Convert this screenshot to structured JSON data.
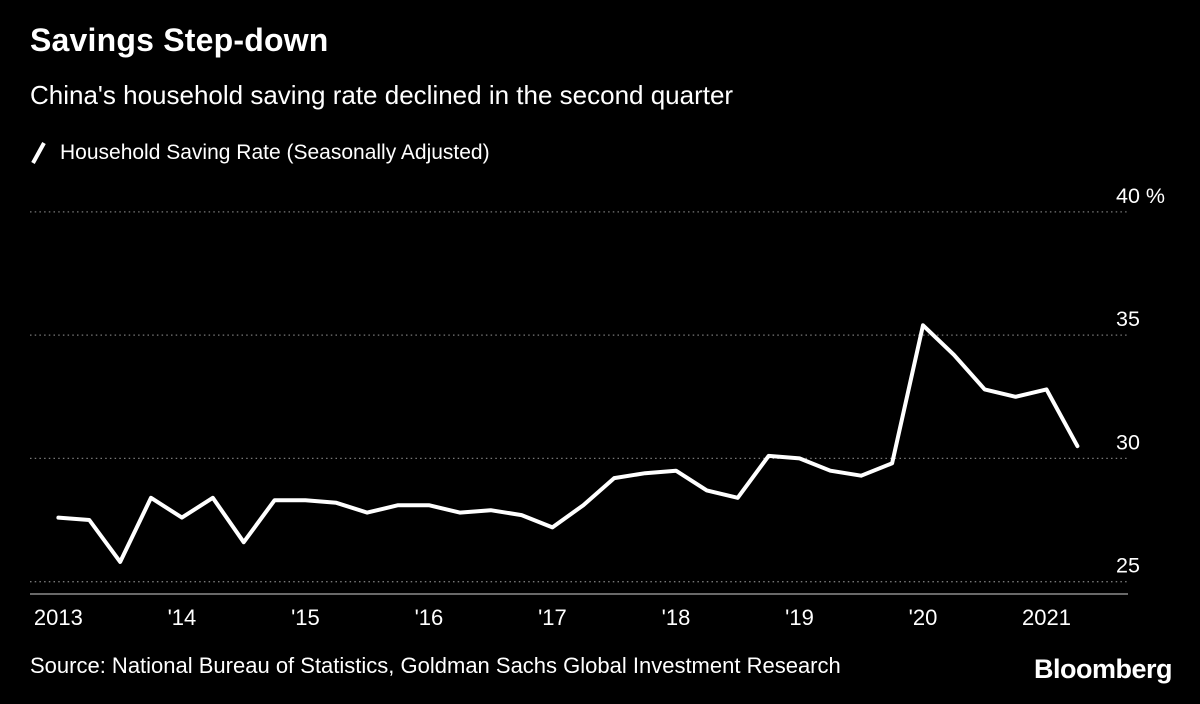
{
  "colors": {
    "background": "#000000",
    "text": "#ffffff",
    "line": "#ffffff",
    "grid": "#787878",
    "axis": "#a8a8a8"
  },
  "header": {
    "title": "Savings Step-down",
    "subtitle": "China's household saving rate declined in the second quarter"
  },
  "legend": {
    "marker": "white-slash-line",
    "label": "Household Saving Rate (Seasonally Adjusted)"
  },
  "footer": {
    "source": "Source: National Bureau of Statistics, Goldman Sachs Global Investment Research",
    "brand": "Bloomberg"
  },
  "chart_data": {
    "type": "line",
    "title": "Savings Step-down",
    "subtitle": "China's household saving rate declined in the second quarter",
    "grid": "horizontal-dotted",
    "legend_position": "top-left",
    "y_axis_side": "right",
    "y_unit": "%",
    "y_ticks": [
      25,
      30,
      35,
      40
    ],
    "ylim": [
      24.5,
      41.9
    ],
    "xlim": [
      2012.77,
      2021.66
    ],
    "x_ticks": [
      {
        "v": 2013,
        "label": "2013"
      },
      {
        "v": 2014,
        "label": "'14"
      },
      {
        "v": 2015,
        "label": "'15"
      },
      {
        "v": 2016,
        "label": "'16"
      },
      {
        "v": 2017,
        "label": "'17"
      },
      {
        "v": 2018,
        "label": "'18"
      },
      {
        "v": 2019,
        "label": "'19"
      },
      {
        "v": 2020,
        "label": "'20"
      },
      {
        "v": 2021,
        "label": "2021"
      }
    ],
    "series": [
      {
        "name": "Household Saving Rate (Seasonally Adjusted)",
        "x": [
          2013.0,
          2013.25,
          2013.5,
          2013.75,
          2014.0,
          2014.25,
          2014.5,
          2014.75,
          2015.0,
          2015.25,
          2015.5,
          2015.75,
          2016.0,
          2016.25,
          2016.5,
          2016.75,
          2017.0,
          2017.25,
          2017.5,
          2017.75,
          2018.0,
          2018.25,
          2018.5,
          2018.75,
          2019.0,
          2019.25,
          2019.5,
          2019.75,
          2020.0,
          2020.25,
          2020.5,
          2020.75,
          2021.0,
          2021.25
        ],
        "values": [
          27.6,
          27.5,
          25.8,
          28.4,
          27.6,
          28.4,
          26.6,
          28.3,
          28.3,
          28.2,
          27.8,
          28.1,
          28.1,
          27.8,
          27.9,
          27.7,
          27.2,
          28.1,
          29.2,
          29.4,
          29.5,
          28.7,
          28.4,
          30.1,
          30.0,
          29.5,
          29.3,
          29.8,
          35.4,
          34.2,
          32.8,
          32.5,
          32.8,
          30.5
        ]
      }
    ]
  }
}
